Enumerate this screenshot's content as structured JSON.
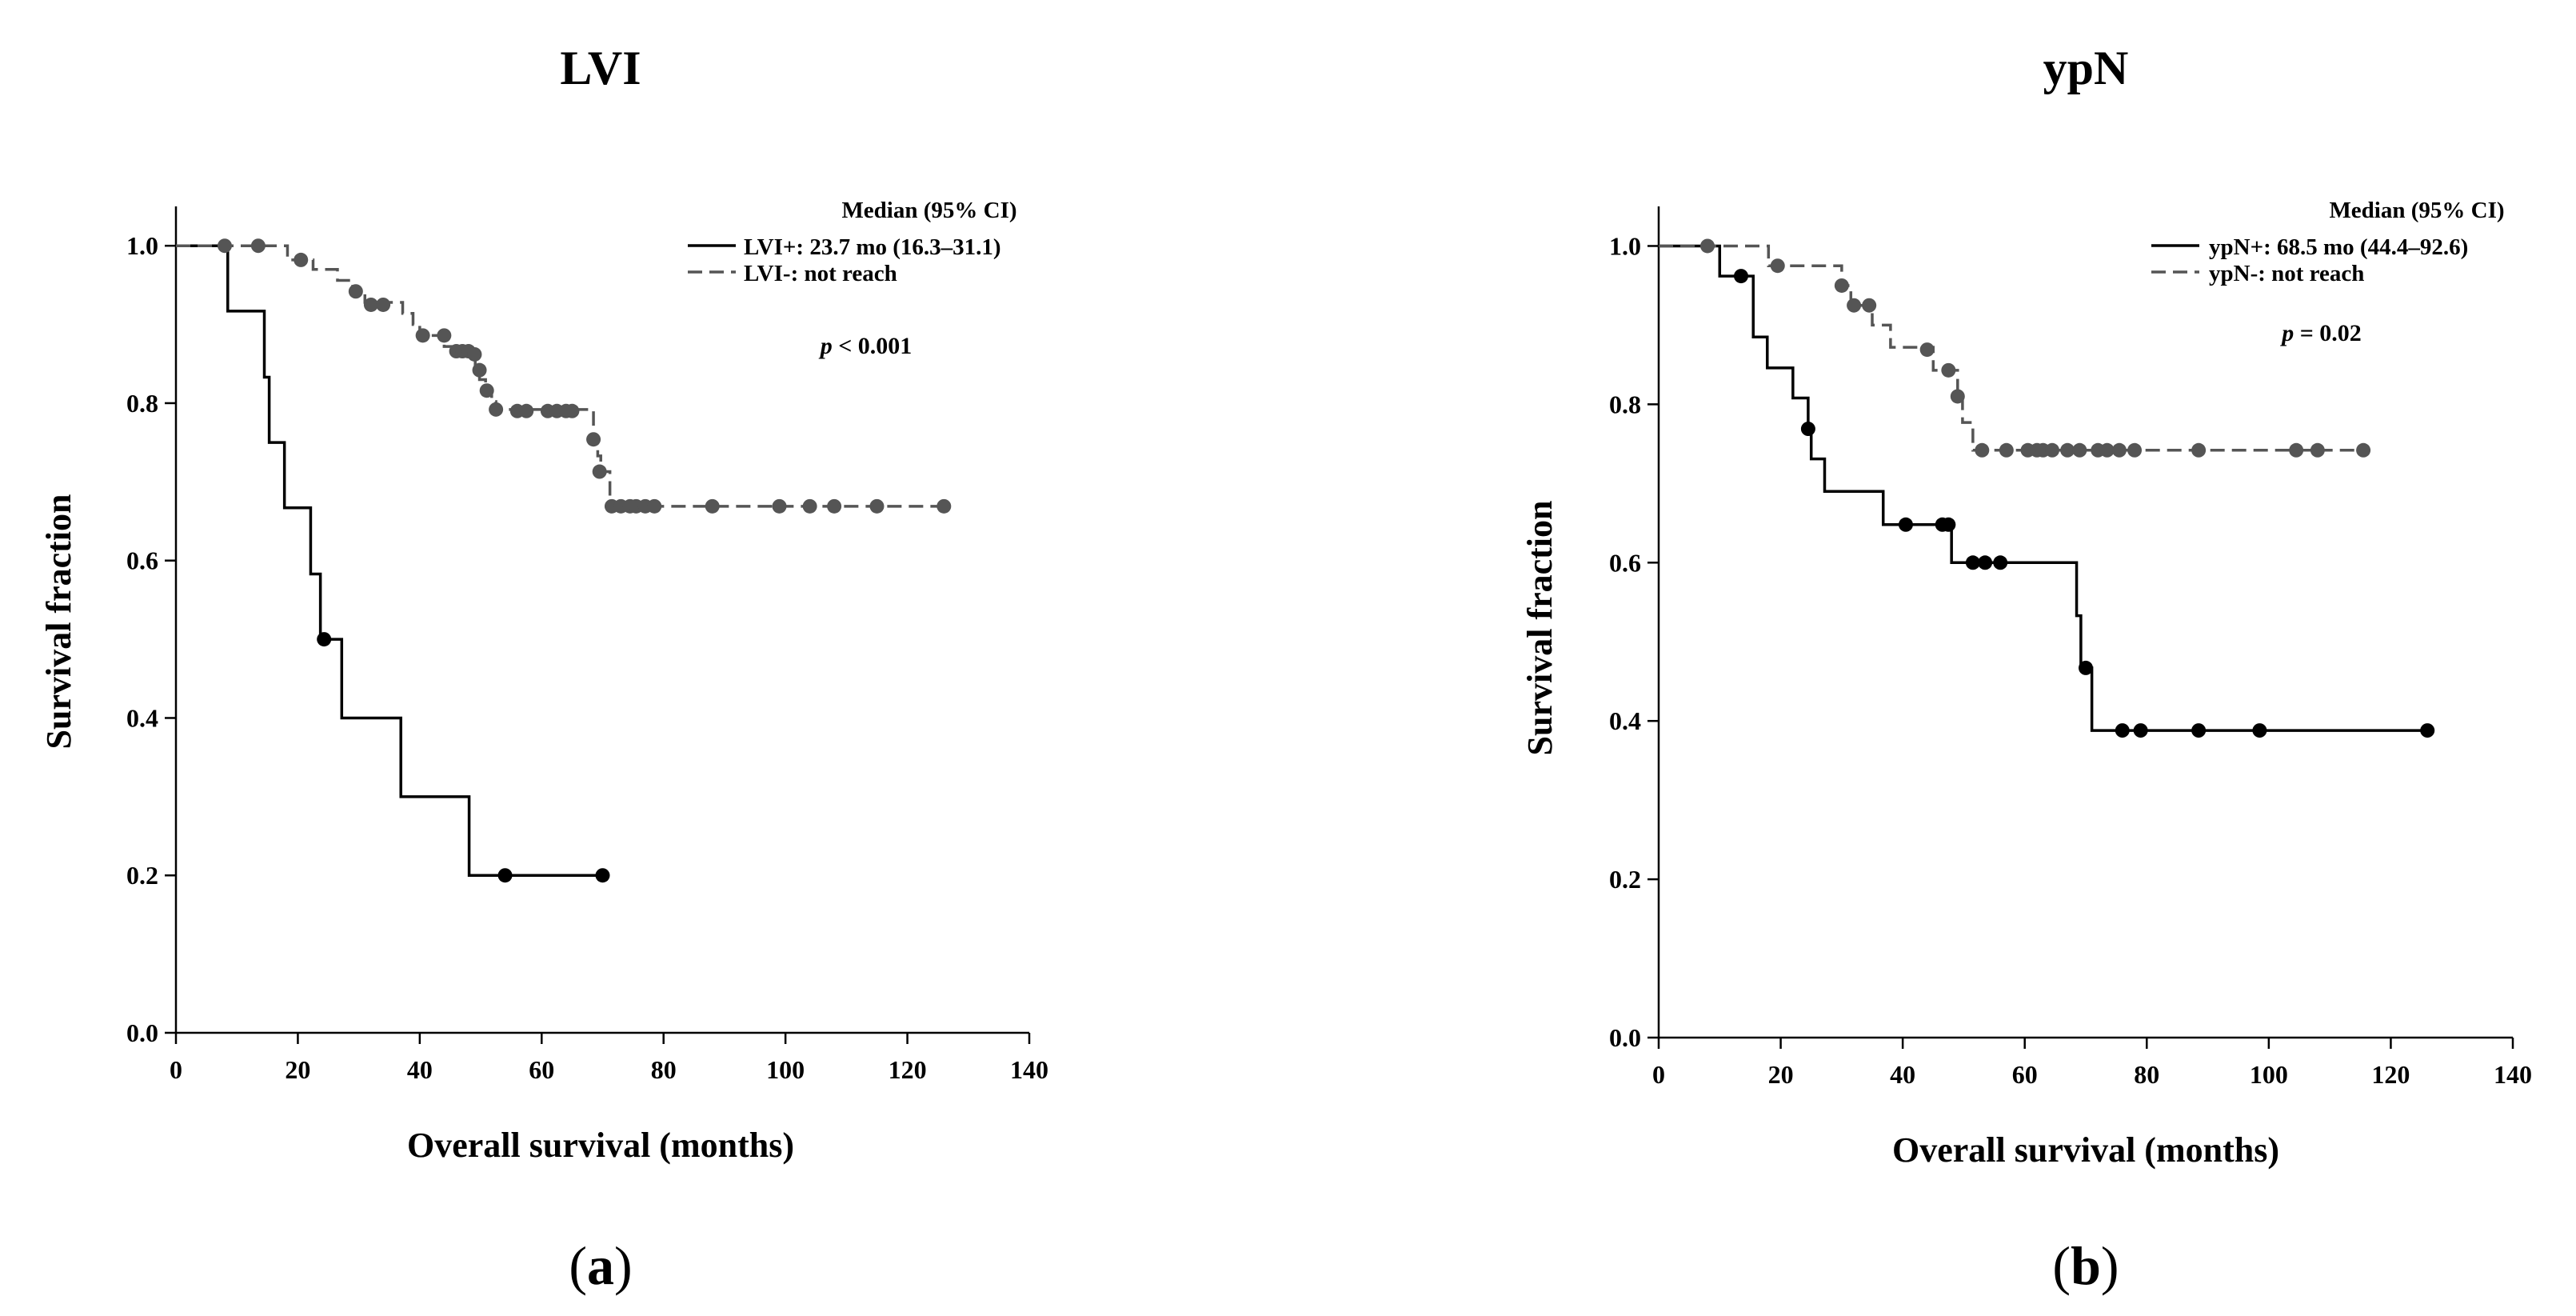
{
  "chart_data": [
    {
      "type": "line",
      "title": "LVI",
      "xlabel": "Overall survival (months)",
      "ylabel": "Survival fraction",
      "xlim": [
        0,
        140
      ],
      "ylim": [
        0,
        1
      ],
      "xticks": [
        "0",
        "20",
        "40",
        "60",
        "80",
        "100",
        "120",
        "140"
      ],
      "yticks": [
        "0.0",
        "0.2",
        "0.4",
        "0.6",
        "0.8",
        "1.0"
      ],
      "legend": {
        "title": "Median (95% CI)",
        "entries": [
          "LVI+: 23.7 mo (16.3–31.1)",
          "LVI-: not reach"
        ]
      },
      "pvalue": {
        "p": "p",
        "rest": " < 0.001"
      },
      "panel_label": {
        "open": "(",
        "letter": "a",
        "close": ")"
      },
      "series": [
        {
          "name": "LVI+",
          "style": "solid",
          "color": "#000000",
          "steps": [
            [
              0,
              1.0
            ],
            [
              8.5,
              0.917
            ],
            [
              14.5,
              0.833
            ],
            [
              15.3,
              0.75
            ],
            [
              17.8,
              0.667
            ],
            [
              22.1,
              0.583
            ],
            [
              23.7,
              0.5
            ],
            [
              27.2,
              0.4
            ],
            [
              36.9,
              0.3
            ],
            [
              48.1,
              0.2
            ],
            [
              70.0,
              0.2
            ]
          ],
          "censored": [
            [
              24.3,
              0.5
            ],
            [
              54.0,
              0.2
            ],
            [
              70.0,
              0.2
            ]
          ]
        },
        {
          "name": "LVI-",
          "style": "dashed",
          "color": "#555555",
          "steps": [
            [
              0,
              1.0
            ],
            [
              18.3,
              0.982
            ],
            [
              22.5,
              0.97
            ],
            [
              26.5,
              0.956
            ],
            [
              29.0,
              0.942
            ],
            [
              31.0,
              0.928
            ],
            [
              37.2,
              0.914
            ],
            [
              38.9,
              0.9
            ],
            [
              40.0,
              0.886
            ],
            [
              44.0,
              0.872
            ],
            [
              48.2,
              0.858
            ],
            [
              49.1,
              0.844
            ],
            [
              49.8,
              0.83
            ],
            [
              50.8,
              0.816
            ],
            [
              51.8,
              0.802
            ],
            [
              52.5,
              0.792
            ],
            [
              68.5,
              0.754
            ],
            [
              69.2,
              0.733
            ],
            [
              69.7,
              0.713
            ],
            [
              71.2,
              0.669
            ],
            [
              126.0,
              0.669
            ]
          ],
          "censored": [
            [
              8.0,
              1.0
            ],
            [
              13.5,
              1.0
            ],
            [
              20.5,
              0.982
            ],
            [
              29.5,
              0.942
            ],
            [
              32.0,
              0.925
            ],
            [
              34.0,
              0.925
            ],
            [
              40.5,
              0.886
            ],
            [
              44.0,
              0.886
            ],
            [
              46.0,
              0.866
            ],
            [
              47.0,
              0.866
            ],
            [
              48.0,
              0.866
            ],
            [
              49.0,
              0.862
            ],
            [
              49.8,
              0.842
            ],
            [
              51.0,
              0.816
            ],
            [
              52.5,
              0.792
            ],
            [
              56.0,
              0.79
            ],
            [
              57.5,
              0.79
            ],
            [
              61.0,
              0.79
            ],
            [
              62.5,
              0.79
            ],
            [
              64.0,
              0.79
            ],
            [
              65.0,
              0.79
            ],
            [
              68.5,
              0.754
            ],
            [
              69.5,
              0.713
            ],
            [
              71.5,
              0.669
            ],
            [
              73.0,
              0.669
            ],
            [
              74.5,
              0.669
            ],
            [
              75.5,
              0.669
            ],
            [
              77.0,
              0.669
            ],
            [
              78.5,
              0.669
            ],
            [
              88.0,
              0.669
            ],
            [
              99.0,
              0.669
            ],
            [
              104.0,
              0.669
            ],
            [
              108.0,
              0.669
            ],
            [
              115.0,
              0.669
            ],
            [
              126.0,
              0.669
            ]
          ]
        }
      ]
    },
    {
      "type": "line",
      "title": "ypN",
      "xlabel": "Overall survival (months)",
      "ylabel": "Survival fraction",
      "xlim": [
        0,
        140
      ],
      "ylim": [
        0,
        1
      ],
      "xticks": [
        "0",
        "20",
        "40",
        "60",
        "80",
        "100",
        "120",
        "140"
      ],
      "yticks": [
        "0.0",
        "0.2",
        "0.4",
        "0.6",
        "0.8",
        "1.0"
      ],
      "legend": {
        "title": "Median (95% CI)",
        "entries": [
          "ypN+: 68.5 mo (44.4–92.6)",
          "ypN-: not reach"
        ]
      },
      "pvalue": {
        "p": "p",
        "rest": " = 0.02"
      },
      "panel_label": {
        "open": "(",
        "letter": "b",
        "close": ")"
      },
      "series": [
        {
          "name": "ypN+",
          "style": "solid",
          "color": "#000000",
          "steps": [
            [
              0,
              1.0
            ],
            [
              10.0,
              0.962
            ],
            [
              15.5,
              0.885
            ],
            [
              17.8,
              0.846
            ],
            [
              22.0,
              0.808
            ],
            [
              24.5,
              0.769
            ],
            [
              25.0,
              0.731
            ],
            [
              27.2,
              0.69
            ],
            [
              36.8,
              0.648
            ],
            [
              48.0,
              0.6
            ],
            [
              68.5,
              0.533
            ],
            [
              69.2,
              0.467
            ],
            [
              71.0,
              0.388
            ],
            [
              126.0,
              0.388
            ]
          ],
          "censored": [
            [
              13.5,
              0.962
            ],
            [
              24.5,
              0.769
            ],
            [
              40.5,
              0.648
            ],
            [
              46.5,
              0.648
            ],
            [
              47.5,
              0.648
            ],
            [
              51.5,
              0.6
            ],
            [
              53.5,
              0.6
            ],
            [
              56.0,
              0.6
            ],
            [
              70.0,
              0.467
            ],
            [
              76.0,
              0.388
            ],
            [
              79.0,
              0.388
            ],
            [
              88.5,
              0.388
            ],
            [
              98.5,
              0.388
            ],
            [
              126.0,
              0.388
            ]
          ]
        },
        {
          "name": "ypN-",
          "style": "dashed",
          "color": "#555555",
          "steps": [
            [
              0,
              1.0
            ],
            [
              18.0,
              0.975
            ],
            [
              30.0,
              0.95
            ],
            [
              31.5,
              0.925
            ],
            [
              35.0,
              0.9
            ],
            [
              38.0,
              0.872
            ],
            [
              45.0,
              0.843
            ],
            [
              49.0,
              0.81
            ],
            [
              49.8,
              0.777
            ],
            [
              51.5,
              0.742
            ],
            [
              115.5,
              0.742
            ]
          ],
          "censored": [
            [
              8.0,
              1.0
            ],
            [
              19.5,
              0.975
            ],
            [
              30.0,
              0.95
            ],
            [
              32.0,
              0.925
            ],
            [
              34.5,
              0.925
            ],
            [
              44.0,
              0.869
            ],
            [
              47.5,
              0.843
            ],
            [
              49.0,
              0.81
            ],
            [
              53.0,
              0.742
            ],
            [
              57.0,
              0.742
            ],
            [
              60.5,
              0.742
            ],
            [
              62.0,
              0.742
            ],
            [
              63.0,
              0.742
            ],
            [
              64.5,
              0.742
            ],
            [
              67.0,
              0.742
            ],
            [
              69.0,
              0.742
            ],
            [
              72.0,
              0.742
            ],
            [
              73.5,
              0.742
            ],
            [
              75.5,
              0.742
            ],
            [
              78.0,
              0.742
            ],
            [
              88.5,
              0.742
            ],
            [
              104.5,
              0.742
            ],
            [
              108.0,
              0.742
            ],
            [
              115.5,
              0.742
            ]
          ]
        }
      ]
    }
  ]
}
